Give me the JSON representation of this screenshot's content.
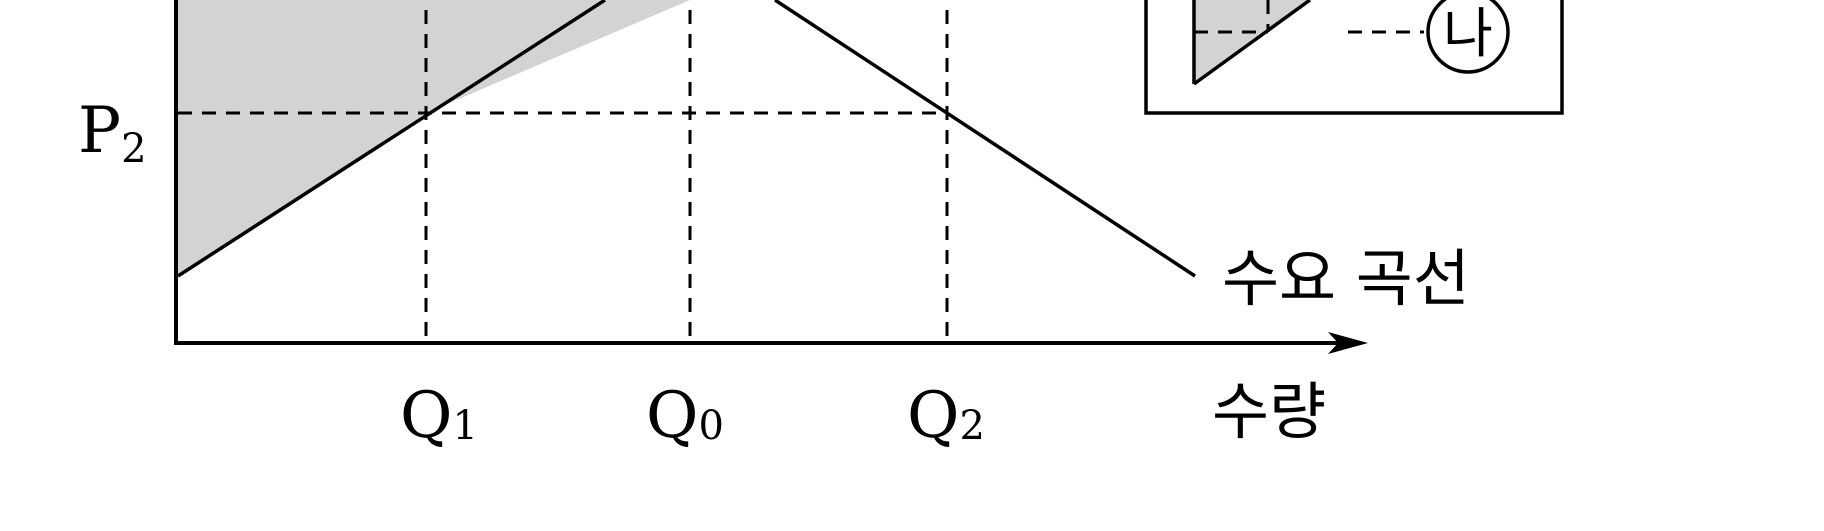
{
  "diagram": {
    "price_label": {
      "main": "P",
      "sub": "2"
    },
    "quantity_labels": [
      {
        "main": "Q",
        "sub": "1"
      },
      {
        "main": "Q",
        "sub": "0"
      },
      {
        "main": "Q",
        "sub": "2"
      }
    ],
    "demand_curve_label": "수요 곡선",
    "x_axis_label": "수량",
    "legend": {
      "symbol": "나"
    },
    "colors": {
      "shade": "#d3d3d3",
      "line": "#000000"
    }
  }
}
